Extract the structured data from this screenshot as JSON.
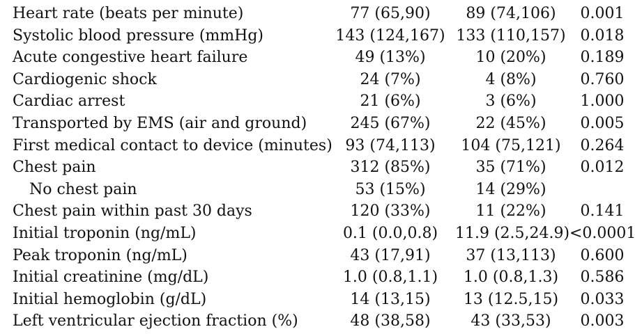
{
  "table": {
    "rows": [
      {
        "label": "Heart rate (beats per minute)",
        "col1": "77 (65,90)",
        "col2": "89 (74,106)",
        "p": "0.001",
        "indent": false
      },
      {
        "label": "Systolic blood pressure (mmHg)",
        "col1": "143 (124,167)",
        "col2": "133 (110,157)",
        "p": "0.018",
        "indent": false
      },
      {
        "label": "Acute congestive heart failure",
        "col1": "49 (13%)",
        "col2": "10 (20%)",
        "p": "0.189",
        "indent": false
      },
      {
        "label": "Cardiogenic shock",
        "col1": "24 (7%)",
        "col2": "4 (8%)",
        "p": "0.760",
        "indent": false
      },
      {
        "label": "Cardiac arrest",
        "col1": "21 (6%)",
        "col2": "3 (6%)",
        "p": "1.000",
        "indent": false
      },
      {
        "label": "Transported by EMS (air and ground)",
        "col1": "245 (67%)",
        "col2": "22 (45%)",
        "p": "0.005",
        "indent": false
      },
      {
        "label": "First medical contact to device (minutes)",
        "col1": "93 (74,113)",
        "col2": "104 (75,121)",
        "p": "0.264",
        "indent": false
      },
      {
        "label": "Chest pain",
        "col1": "312 (85%)",
        "col2": "35 (71%)",
        "p": "0.012",
        "indent": false
      },
      {
        "label": "No chest pain",
        "col1": "53 (15%)",
        "col2": "14 (29%)",
        "p": "",
        "indent": true
      },
      {
        "label": "Chest pain within past 30 days",
        "col1": "120 (33%)",
        "col2": "11 (22%)",
        "p": "0.141",
        "indent": false
      },
      {
        "label": "Initial troponin (ng/mL)",
        "col1": "0.1 (0.0,0.8)",
        "col2": "11.9 (2.5,24.9)",
        "p": "<0.0001",
        "indent": false
      },
      {
        "label": "Peak troponin (ng/mL)",
        "col1": "43 (17,91)",
        "col2": "37 (13,113)",
        "p": "0.600",
        "indent": false
      },
      {
        "label": "Initial creatinine (mg/dL)",
        "col1": "1.0 (0.8,1.1)",
        "col2": "1.0 (0.8,1.3)",
        "p": "0.586",
        "indent": false
      },
      {
        "label": "Initial hemoglobin (g/dL)",
        "col1": "14 (13,15)",
        "col2": "13 (12.5,15)",
        "p": "0.033",
        "indent": false
      },
      {
        "label": "Left ventricular ejection fraction (%)",
        "col1": "48 (38,58)",
        "col2": "43 (33,53)",
        "p": "0.003",
        "indent": false
      }
    ]
  }
}
